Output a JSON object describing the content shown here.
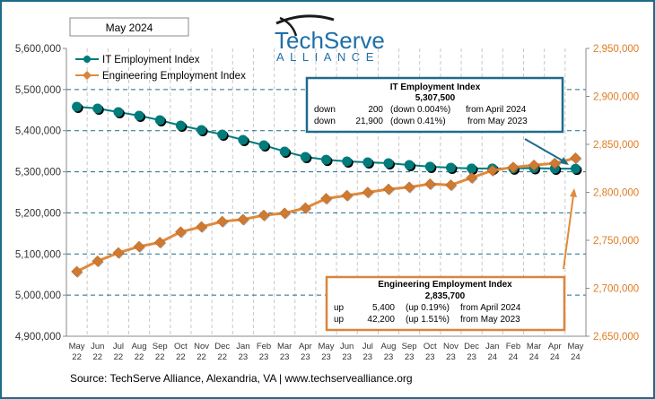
{
  "month_label": "May 2024",
  "logo": {
    "line1": "TechServe",
    "line2": "ALLIANCE"
  },
  "source": "Source: TechServe Alliance, Alexandria, VA | www.techservealliance.org",
  "colors": {
    "it": "#007b7b",
    "eng": "#e08a3c",
    "it_box": "#1f6b8a",
    "eng_box": "#d9843e",
    "right_axis_text": "#e07b20",
    "grid": "#1f6b8a"
  },
  "it_box": {
    "title": "IT Employment Index",
    "value": "5,307,500",
    "rows": [
      [
        "down",
        "200",
        "(down 0.004%)",
        "from  April 2024"
      ],
      [
        "down",
        "21,900",
        "(down 0.41%)",
        "from May 2023"
      ]
    ]
  },
  "eng_box": {
    "title": "Engineering Employment Index",
    "value": "2,835,700",
    "rows": [
      [
        "up",
        "5,400",
        "(up 0.19%)",
        "from  April 2024"
      ],
      [
        "up",
        "42,200",
        "(up 1.51%)",
        "from  May 2023"
      ]
    ]
  },
  "chart_data": {
    "type": "line",
    "x_months": [
      "May",
      "Jun",
      "Jul",
      "Aug",
      "Sep",
      "Oct",
      "Nov",
      "Dec",
      "Jan",
      "Feb",
      "Mar",
      "Apr",
      "May",
      "Jun",
      "Jul",
      "Aug",
      "Sep",
      "Oct",
      "Nov",
      "Dec",
      "Jan",
      "Feb",
      "Mar",
      "Apr",
      "May"
    ],
    "x_years": [
      "22",
      "22",
      "22",
      "22",
      "22",
      "22",
      "22",
      "22",
      "23",
      "23",
      "23",
      "23",
      "23",
      "23",
      "23",
      "23",
      "23",
      "23",
      "23",
      "23",
      "24",
      "24",
      "24",
      "24",
      "24"
    ],
    "left_axis": {
      "ylim": [
        4900000,
        5600000
      ],
      "ticks": [
        "4,900,000",
        "5,000,000",
        "5,100,000",
        "5,200,000",
        "5,300,000",
        "5,400,000",
        "5,500,000",
        "5,600,000"
      ]
    },
    "right_axis": {
      "ylim": [
        2650000,
        2950000
      ],
      "ticks": [
        "2,650,000",
        "2,700,000",
        "2,750,000",
        "2,800,000",
        "2,850,000",
        "2,900,000",
        "2,950,000"
      ]
    },
    "legend_placement": "top-left",
    "series": [
      {
        "name": "IT Employment Index",
        "axis": "left",
        "marker": "circle",
        "values": [
          5458300,
          5453900,
          5445200,
          5436500,
          5425600,
          5412500,
          5401600,
          5390700,
          5377600,
          5364500,
          5349300,
          5336200,
          5329400,
          5325300,
          5323100,
          5321000,
          5316600,
          5312300,
          5310000,
          5308000,
          5308000,
          5308000,
          5309000,
          5307700,
          5307500
        ]
      },
      {
        "name": "Engineering Employment Index",
        "axis": "right",
        "marker": "diamond",
        "values": [
          2717400,
          2728300,
          2737000,
          2743500,
          2747800,
          2758700,
          2764100,
          2769600,
          2771700,
          2776100,
          2778300,
          2783700,
          2793500,
          2796700,
          2800000,
          2803300,
          2805400,
          2808700,
          2807600,
          2815200,
          2822800,
          2826100,
          2828300,
          2830300,
          2835700
        ]
      }
    ]
  }
}
